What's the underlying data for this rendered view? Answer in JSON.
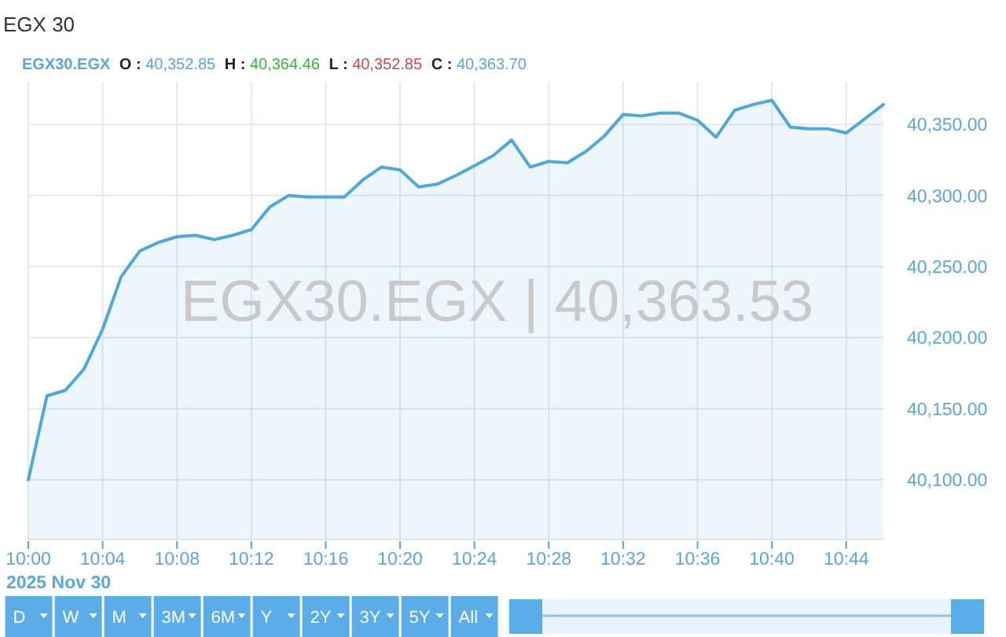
{
  "chart_data": {
    "type": "area",
    "title": "EGX 30",
    "subtitle": "EGX30.EGX O : 40,352.85 H : 40,364.46 L : 40,352.85 C : 40,363.70",
    "xlabel": "2025 Nov 30",
    "annotations": [
      "EGX30.EGX | 40,363.53",
      "D",
      "W",
      "M",
      "3M",
      "6M",
      "Y",
      "2Y",
      "3Y",
      "5Y",
      "All"
    ],
    "x": [
      "2025-11-30T10:00",
      "2025-11-30T10:01",
      "2025-11-30T10:02",
      "2025-11-30T10:03",
      "2025-11-30T10:04",
      "2025-11-30T10:05",
      "2025-11-30T10:06",
      "2025-11-30T10:07",
      "2025-11-30T10:08",
      "2025-11-30T10:09",
      "2025-11-30T10:10",
      "2025-11-30T10:11",
      "2025-11-30T10:12",
      "2025-11-30T10:13",
      "2025-11-30T10:14",
      "2025-11-30T10:15",
      "2025-11-30T10:16",
      "2025-11-30T10:17",
      "2025-11-30T10:18",
      "2025-11-30T10:19",
      "2025-11-30T10:20",
      "2025-11-30T10:21",
      "2025-11-30T10:22",
      "2025-11-30T10:23",
      "2025-11-30T10:24",
      "2025-11-30T10:25",
      "2025-11-30T10:26",
      "2025-11-30T10:27",
      "2025-11-30T10:28",
      "2025-11-30T10:29",
      "2025-11-30T10:30",
      "2025-11-30T10:31",
      "2025-11-30T10:32",
      "2025-11-30T10:33",
      "2025-11-30T10:34",
      "2025-11-30T10:35",
      "2025-11-30T10:36",
      "2025-11-30T10:37",
      "2025-11-30T10:38",
      "2025-11-30T10:39",
      "2025-11-30T10:40",
      "2025-11-30T10:41",
      "2025-11-30T10:42",
      "2025-11-30T10:43",
      "2025-11-30T10:44",
      "2025-11-30T10:45",
      "2025-11-30T10:46"
    ],
    "values": [
      40100,
      40159,
      40163,
      40178,
      40206,
      40243,
      40261,
      40267,
      40271,
      40272,
      40269,
      40272,
      40276,
      40292,
      40300,
      40299,
      40299,
      40299,
      40311,
      40320,
      40318,
      40306,
      40308,
      40314,
      40321,
      40328,
      40339,
      40320,
      40324,
      40323,
      40331,
      40342,
      40357,
      40356,
      40358,
      40358,
      40353,
      40341,
      40360,
      40364,
      40367,
      40348,
      40347,
      40347,
      40344,
      40354,
      40364
    ],
    "color": "#4fa8dc",
    "xlim": [
      "2025-11-30T10:00",
      "2025-11-30T10:46"
    ],
    "xticks": [
      {
        "value": "2025-11-30T10:00",
        "label": "10:00"
      },
      {
        "value": "2025-11-30T10:04",
        "label": "10:04"
      },
      {
        "value": "2025-11-30T10:08",
        "label": "10:08"
      },
      {
        "value": "2025-11-30T10:12",
        "label": "10:12"
      },
      {
        "value": "2025-11-30T10:16",
        "label": "10:16"
      },
      {
        "value": "2025-11-30T10:20",
        "label": "10:20"
      },
      {
        "value": "2025-11-30T10:24",
        "label": "10:24"
      },
      {
        "value": "2025-11-30T10:28",
        "label": "10:28"
      },
      {
        "value": "2025-11-30T10:32",
        "label": "10:32"
      },
      {
        "value": "2025-11-30T10:36",
        "label": "10:36"
      },
      {
        "value": "2025-11-30T10:40",
        "label": "10:40"
      },
      {
        "value": "2025-11-30T10:44",
        "label": "10:44"
      }
    ],
    "ylim": [
      40058,
      40380
    ],
    "yticks": [
      {
        "value": 40100,
        "label": "40,100.00"
      },
      {
        "value": 40150,
        "label": "40,150.00"
      },
      {
        "value": 40200,
        "label": "40,200.00"
      },
      {
        "value": 40250,
        "label": "40,250.00"
      },
      {
        "value": 40300,
        "label": "40,300.00"
      },
      {
        "value": 40350,
        "label": "40,350.00"
      }
    ],
    "grid": true
  }
}
